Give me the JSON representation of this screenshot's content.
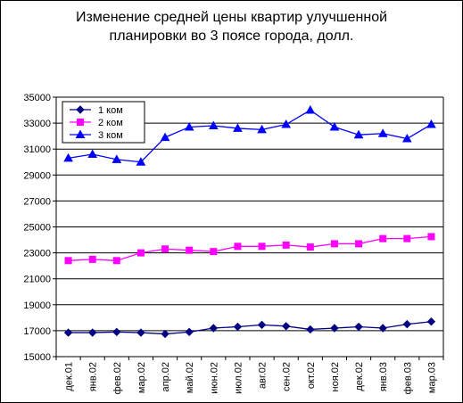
{
  "title_lines": [
    "Изменение средней цены квартир улучшенной",
    "планировки во 3 поясе города, долл."
  ],
  "chart_data": {
    "type": "line",
    "title": "Изменение средней цены квартир улучшенной планировки во 3 поясе города, долл.",
    "xlabel": "",
    "ylabel": "",
    "categories": [
      "дек.01",
      "янв.02",
      "фев.02",
      "мар.02",
      "апр.02",
      "май.02",
      "июн.02",
      "июл.02",
      "авг.02",
      "сен.02",
      "окт.02",
      "ноя.02",
      "дек.02",
      "янв.03",
      "фев.03",
      "мар.03"
    ],
    "ylim": [
      15000,
      35000
    ],
    "yticks": [
      15000,
      17000,
      19000,
      21000,
      23000,
      25000,
      27000,
      29000,
      31000,
      33000,
      35000
    ],
    "grid": true,
    "legend_position": "top-left",
    "series": [
      {
        "name": "1 ком",
        "color": "#000080",
        "marker": "diamond",
        "values": [
          16850,
          16850,
          16900,
          16850,
          16750,
          16900,
          17200,
          17300,
          17450,
          17350,
          17100,
          17200,
          17300,
          17200,
          17500,
          17700
        ]
      },
      {
        "name": "2 ком",
        "color": "#ff00ff",
        "marker": "square",
        "values": [
          22400,
          22500,
          22400,
          23000,
          23300,
          23200,
          23100,
          23500,
          23500,
          23600,
          23450,
          23700,
          23700,
          24100,
          24100,
          24250
        ]
      },
      {
        "name": "3 ком",
        "color": "#0000ff",
        "marker": "triangle",
        "values": [
          30300,
          30600,
          30200,
          30000,
          31900,
          32700,
          32800,
          32600,
          32500,
          32900,
          34000,
          32700,
          32100,
          32200,
          31800,
          32900
        ]
      }
    ]
  }
}
